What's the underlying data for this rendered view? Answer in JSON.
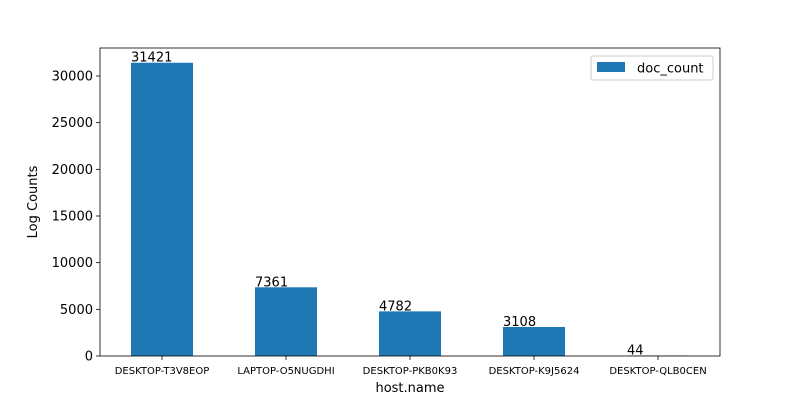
{
  "chart_data": {
    "type": "bar",
    "categories": [
      "DESKTOP-T3V8EOP",
      "LAPTOP-O5NUGDHI",
      "DESKTOP-PKB0K93",
      "DESKTOP-K9J5624",
      "DESKTOP-QLB0CEN"
    ],
    "series": [
      {
        "name": "doc_count",
        "values": [
          31421,
          7361,
          4782,
          3108,
          44
        ],
        "color": "#1f77b4"
      }
    ],
    "data_labels": [
      "31421",
      "7361",
      "4782",
      "3108",
      "44"
    ],
    "xlabel": "host.name",
    "ylabel": "Log Counts",
    "ylim": [
      0,
      33000
    ],
    "yticks": [
      0,
      5000,
      10000,
      15000,
      20000,
      25000,
      30000
    ],
    "grid": false,
    "legend": {
      "placement": "top-right",
      "entries": [
        "doc_count"
      ]
    }
  }
}
